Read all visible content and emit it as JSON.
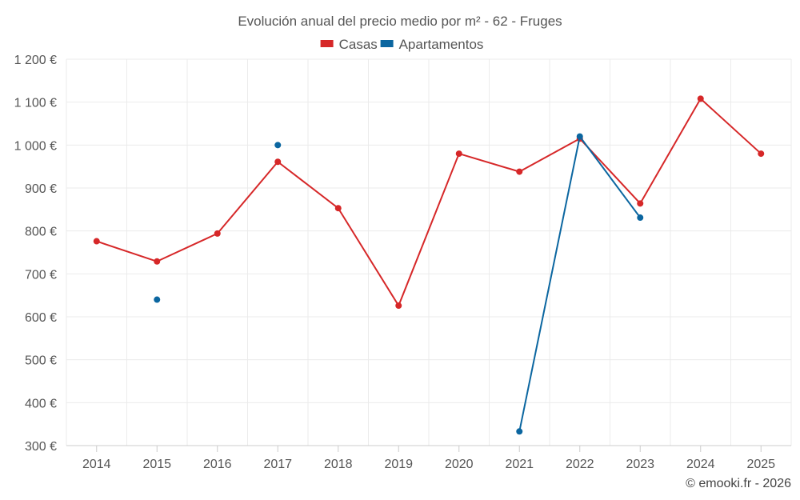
{
  "chart_data": {
    "type": "line",
    "title": "Evolución anual del precio medio por m² - 62 - Fruges",
    "categories": [
      "2014",
      "2015",
      "2016",
      "2017",
      "2018",
      "2019",
      "2020",
      "2021",
      "2022",
      "2023",
      "2024",
      "2025"
    ],
    "series": [
      {
        "name": "Casas",
        "color": "#d62728",
        "values": [
          776,
          729,
          794,
          961,
          853,
          626,
          980,
          938,
          1015,
          864,
          1108,
          980
        ]
      },
      {
        "name": "Apartamentos",
        "color": "#0b66a0",
        "values": [
          null,
          640,
          null,
          1000,
          null,
          null,
          null,
          333,
          1020,
          831,
          null,
          null
        ]
      }
    ],
    "ylim": [
      300,
      1200
    ],
    "yticks": [
      300,
      400,
      500,
      600,
      700,
      800,
      900,
      1000,
      1100,
      1200
    ],
    "ytick_labels": [
      "300 €",
      "400 €",
      "500 €",
      "600 €",
      "700 €",
      "800 €",
      "900 €",
      "1 000 €",
      "1 100 €",
      "1 200 €"
    ],
    "legend": "top-center",
    "grid": true,
    "xlabel": "",
    "ylabel": ""
  },
  "credit": "© emooki.fr - 2026"
}
